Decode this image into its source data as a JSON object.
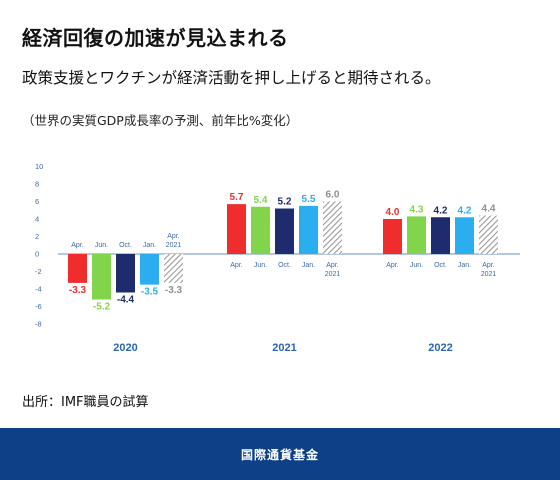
{
  "header": {
    "title": "経済回復の加速が見込まれる",
    "subtitle": "政策支援とワクチンが経済活動を押し上げると期待される。",
    "note": "（世界の実質GDP成長率の予測、前年比%変化）"
  },
  "source": "出所：IMF職員の試算",
  "footer": {
    "org": "国際通貨基金"
  },
  "colors": {
    "Apr.": "#ef2d2d",
    "Jun.": "#82d44a",
    "Oct.": "#1e2c6e",
    "Jan.": "#2aaef0",
    "Apr. 2021": "#9a9a9a",
    "footer": "#0e4088"
  },
  "chart_data": {
    "type": "bar",
    "ylim": [
      -8,
      10
    ],
    "yticks": [
      -8,
      -6,
      -4,
      -2,
      0,
      2,
      4,
      6,
      8,
      10
    ],
    "categories": [
      "2020",
      "2021",
      "2022"
    ],
    "bar_labels": [
      "Apr.",
      "Jun.",
      "Oct.",
      "Jan.",
      "Apr.\n2021"
    ],
    "series": [
      {
        "name": "Apr.",
        "values": [
          -3.3,
          5.7,
          4.0
        ]
      },
      {
        "name": "Jun.",
        "values": [
          -5.2,
          5.4,
          4.3
        ]
      },
      {
        "name": "Oct.",
        "values": [
          -4.4,
          5.2,
          4.2
        ]
      },
      {
        "name": "Jan.",
        "values": [
          -3.5,
          5.5,
          4.2
        ]
      },
      {
        "name": "Apr. 2021",
        "values": [
          -3.3,
          6.0,
          4.4
        ],
        "hatched": true
      }
    ],
    "value_labels": [
      [
        "-3.3",
        "-5.2",
        "-4.4",
        "-3.5",
        "-3.3"
      ],
      [
        "5.7",
        "5.4",
        "5.2",
        "5.5",
        "6.0"
      ],
      [
        "4.0",
        "4.3",
        "4.2",
        "4.2",
        "4.4"
      ]
    ]
  }
}
